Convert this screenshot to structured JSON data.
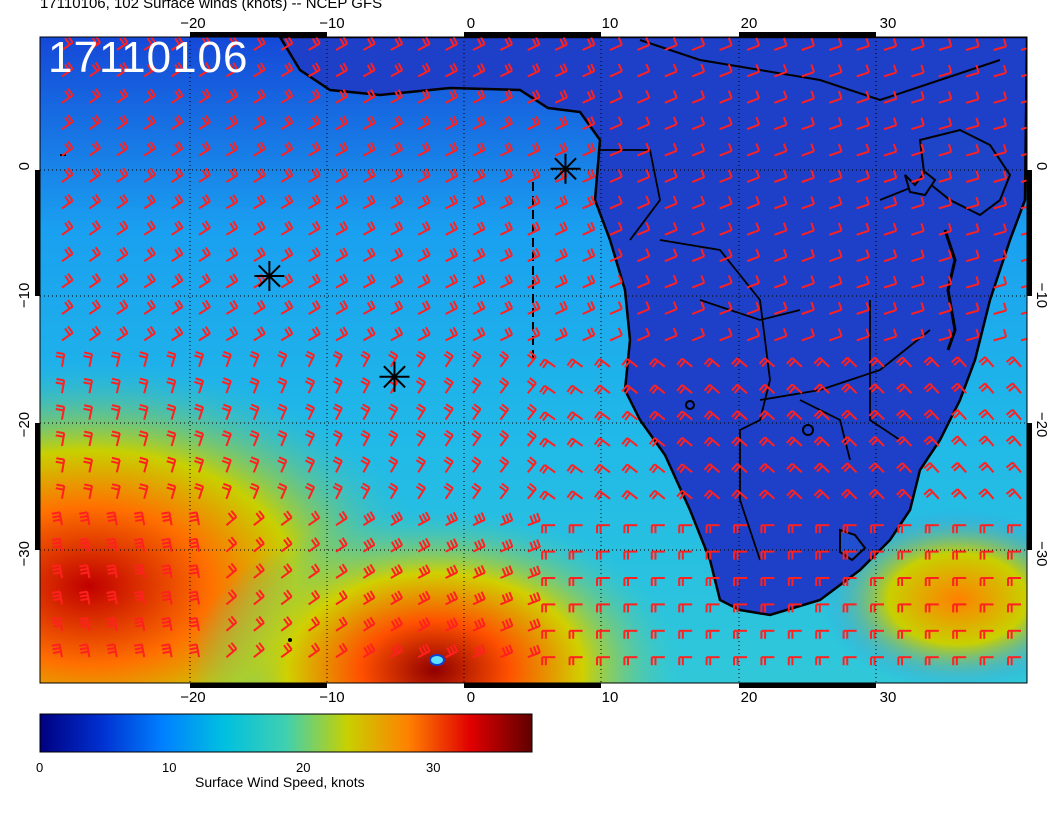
{
  "header": {
    "title": "17110106, 102 Surface winds (knots) -- NCEP GFS"
  },
  "stamp": {
    "text": "17110106"
  },
  "map": {
    "lon_range": [
      -31,
      40
    ],
    "lat_range": [
      -40,
      10
    ],
    "lon_tick_labels": [
      "−20",
      "−10",
      "0",
      "10",
      "20",
      "30"
    ],
    "lat_tick_labels": [
      "0",
      "−10",
      "−20",
      "−30"
    ],
    "barb_color": "#ff2020",
    "markers": [
      {
        "name": "storm-marker-1",
        "lon": -14.5,
        "lat": -8.5
      },
      {
        "name": "storm-marker-2",
        "lon": -5.5,
        "lat": -16.3
      },
      {
        "name": "storm-marker-3",
        "lon": 6.8,
        "lat": -0.2
      }
    ]
  },
  "colorbar": {
    "title": "Surface Wind Speed, knots",
    "tick_labels": [
      "0",
      "10",
      "20",
      "30"
    ],
    "stops": [
      "#000080",
      "#0030d0",
      "#0080ff",
      "#00c0e0",
      "#40d0b0",
      "#c8d000",
      "#ff8000",
      "#e00000",
      "#600000"
    ]
  }
}
